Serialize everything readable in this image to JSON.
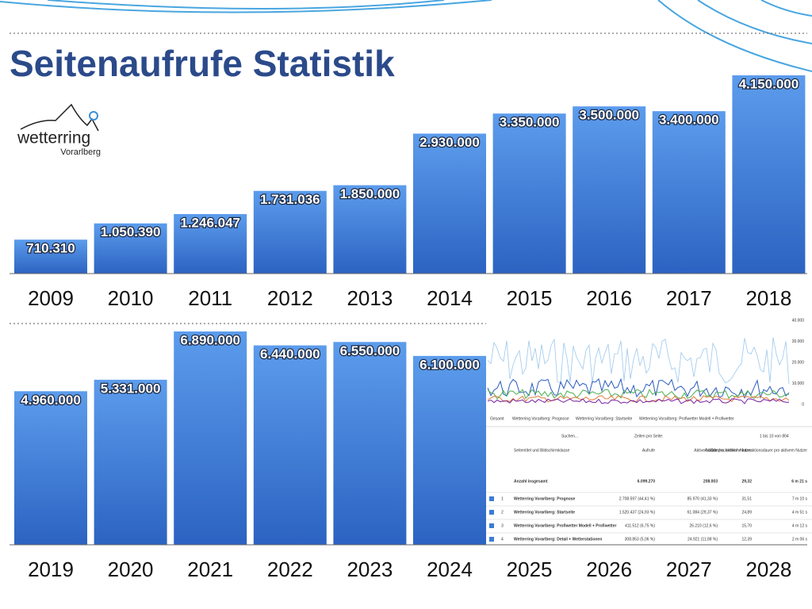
{
  "title": "Seitenaufrufe Statistik",
  "logo": {
    "name": "wetterring",
    "region": "Vorarlberg"
  },
  "chart_data": [
    {
      "type": "bar",
      "categories": [
        "2009",
        "2010",
        "2011",
        "2012",
        "2013",
        "2014",
        "2015",
        "2016",
        "2017",
        "2018"
      ],
      "values": [
        710310,
        1050390,
        1246047,
        1731036,
        1850000,
        2930000,
        3350000,
        3500000,
        3400000,
        4150000
      ],
      "value_labels": [
        "710.310",
        "1.050.390",
        "1.246.047",
        "1.731.036",
        "1.850.000",
        "2.930.000",
        "3.350.000",
        "3.500.000",
        "3.400.000",
        "4.150.000"
      ],
      "ylim": [
        0,
        4150000
      ],
      "color": "#3b7ad8"
    },
    {
      "type": "bar",
      "categories": [
        "2019",
        "2020",
        "2021",
        "2022",
        "2023",
        "2024",
        "2025",
        "2026",
        "2027",
        "2028"
      ],
      "values": [
        4960000,
        5331000,
        6890000,
        6440000,
        6550000,
        6100000,
        null,
        null,
        null,
        null
      ],
      "value_labels": [
        "4.960.000",
        "5.331.000",
        "6.890.000",
        "6.440.000",
        "6.550.000",
        "6.100.000",
        null,
        null,
        null,
        null
      ],
      "ylim": [
        0,
        6890000
      ],
      "color": "#3b7ad8"
    }
  ],
  "analytics_screenshot": {
    "axis_labels": [
      "40.000",
      "30.000",
      "20.000",
      "10.000",
      "0"
    ],
    "legend": [
      "Gesamt",
      "Wetterring Vorarlberg: Prognose",
      "Wetterring Vorarlberg: Startseite",
      "Wetterring Vorarlberg: Profiwetter Modell + Profiwetter"
    ],
    "search": "Suchen...",
    "rows_per_page": "Zeilen pro Seite:",
    "page_info": "1 bis 10 von 804",
    "columns": [
      "Seitentitel und Bildschirmklasse",
      "Aufrufe",
      "Aktive Nutzer",
      "Aufrufe pro aktivem Nutzer",
      "Durchschnittliche Interaktionsdauer pro aktivem Nutzer"
    ],
    "totals": [
      "Anzahl insgesamt",
      "6.099.270",
      "208.003",
      "29,32",
      "6 m 21 s"
    ],
    "rows": [
      [
        "1",
        "Wetterring Vorarlberg: Prognose",
        "2.708.597 (44,41 %)",
        "85.970 (41,33 %)",
        "31,51",
        "7 m 10 s"
      ],
      [
        "2",
        "Wetterring Vorarlberg: Startseite",
        "1.520.437 (24,93 %)",
        "61.084 (29,37 %)",
        "24,89",
        "4 m 51 s"
      ],
      [
        "3",
        "Wetterring Vorarlberg: Profiwetter Modell + Profiwetter",
        "411.512 (6,75 %)",
        "26.210 (12,6 %)",
        "15,70",
        "4 m 12 s"
      ],
      [
        "4",
        "Wetterring Vorarlberg: Detail + Wetterstationen",
        "308.853 (5,06 %)",
        "24.921 (11,98 %)",
        "12,39",
        "2 m 06 s"
      ]
    ]
  }
}
